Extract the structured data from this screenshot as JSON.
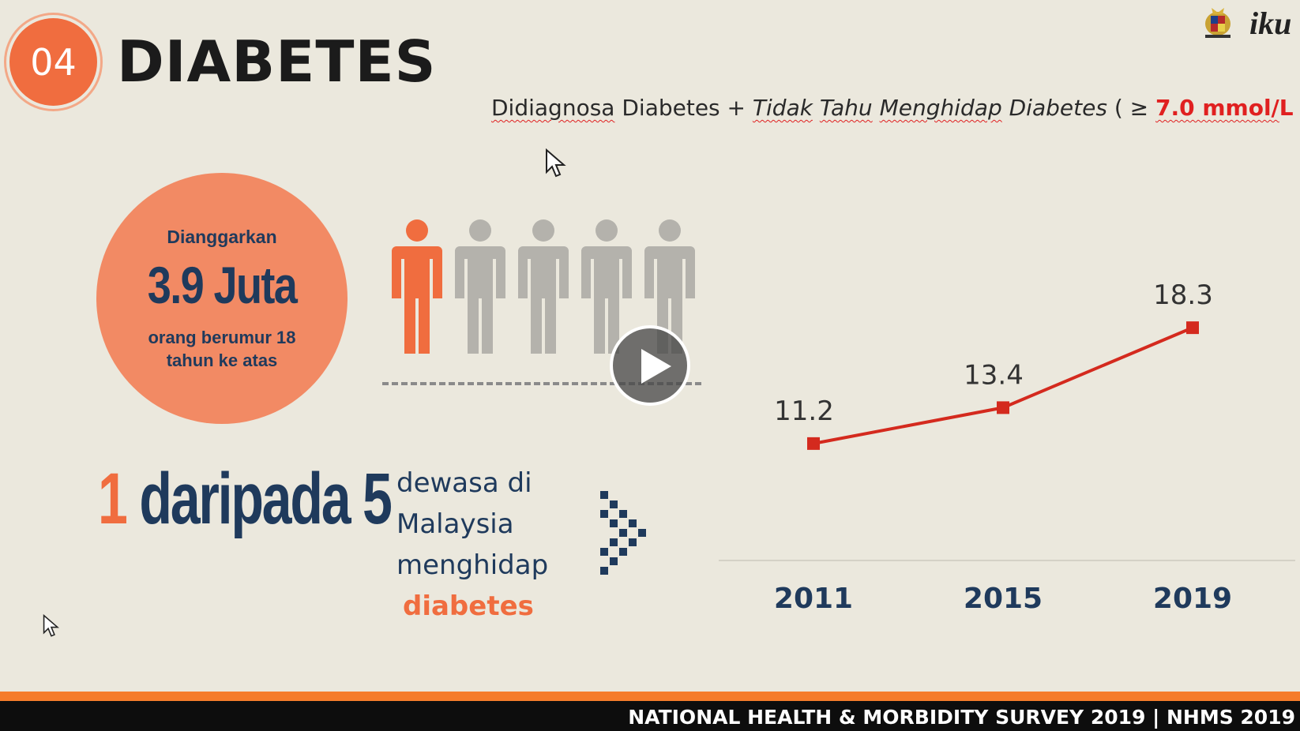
{
  "header": {
    "badge": "04",
    "title": "DIABETES",
    "logo_text": "iku"
  },
  "formula": {
    "part1": "Didiagnosa",
    "part2": " Diabetes + ",
    "part3": "Tidak",
    "part4": " ",
    "part5": "Tahu",
    "part6": " ",
    "part7": "Menghidap",
    "part8": " Diabetes",
    "part9": " ( ≥ ",
    "part10": "7.0 mmol/",
    "part11": "L",
    "part12": " )"
  },
  "circle": {
    "top": "Dianggarkan",
    "main": "3.9 Juta",
    "bottom": "orang berumur 18 tahun ke atas"
  },
  "ratio": {
    "one": "1",
    "text": " daripada 5"
  },
  "description": {
    "line1": "dewasa di",
    "line2": "Malaysia",
    "line3": "menghidap",
    "line4": "diabetes"
  },
  "chart_data": {
    "type": "line",
    "categories": [
      "2011",
      "2015",
      "2019"
    ],
    "values": [
      11.2,
      13.4,
      18.3
    ],
    "data_labels": [
      "11.2",
      "13.4",
      "18.3"
    ],
    "color": "#d42a1e"
  },
  "footer": {
    "text": "NATIONAL HEALTH & MORBIDITY SURVEY 2019  |  NHMS 2019"
  },
  "colors": {
    "orange": "#f06d3f",
    "navy": "#1f3a5c",
    "red": "#e02020"
  },
  "icons": [
    "play-icon",
    "person-icon",
    "crest-icon",
    "cursor-icon"
  ]
}
